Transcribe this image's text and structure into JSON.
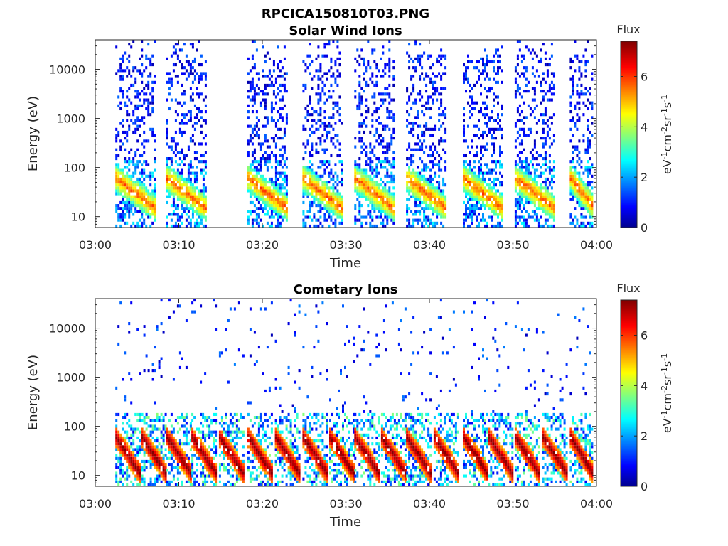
{
  "figure": {
    "filename_title": "RPCICA150810T03.PNG"
  },
  "colorbar": {
    "title": "Flux",
    "label": "eV-1cm-2sr-1s-1",
    "ticks": [
      0,
      2,
      4,
      6
    ],
    "range": [
      0,
      7.4
    ],
    "colormap": "jet"
  },
  "chart_data": [
    {
      "type": "heatmap",
      "title": "Solar Wind Ions",
      "xlabel": "Time",
      "ylabel": "Energy (eV)",
      "xticks": [
        "03:00",
        "03:10",
        "03:20",
        "03:30",
        "03:40",
        "03:50",
        "04:00"
      ],
      "xlim_minutes": [
        0,
        60
      ],
      "yticks": [
        10,
        100,
        1000,
        10000
      ],
      "ylim": [
        6,
        40000
      ],
      "yscale": "log",
      "grid": false,
      "scan_starts_minutes": [
        2.4,
        8.5,
        18.2,
        24.8,
        31.0,
        37.2,
        44.0,
        50.2,
        56.8
      ],
      "bright_flux_energy_eV": [
        15,
        60
      ],
      "peak_flux": 5.5
    },
    {
      "type": "heatmap",
      "title": "Cometary Ions",
      "xlabel": "Time",
      "ylabel": "Energy (eV)",
      "xticks": [
        "03:00",
        "03:10",
        "03:20",
        "03:30",
        "03:40",
        "03:50",
        "04:00"
      ],
      "xlim_minutes": [
        0,
        60
      ],
      "yticks": [
        10,
        100,
        1000,
        10000
      ],
      "ylim": [
        6,
        40000
      ],
      "yscale": "log",
      "grid": false,
      "scan_starts_minutes": [
        2.4,
        5.5,
        8.5,
        11.5,
        14.8,
        18.2,
        21.5,
        24.8,
        28.0,
        31.0,
        34.2,
        37.2,
        40.5,
        44.0,
        47.0,
        50.2,
        53.5,
        56.8
      ],
      "bright_flux_energy_eV": [
        10,
        60
      ],
      "peak_flux": 7.3
    }
  ]
}
